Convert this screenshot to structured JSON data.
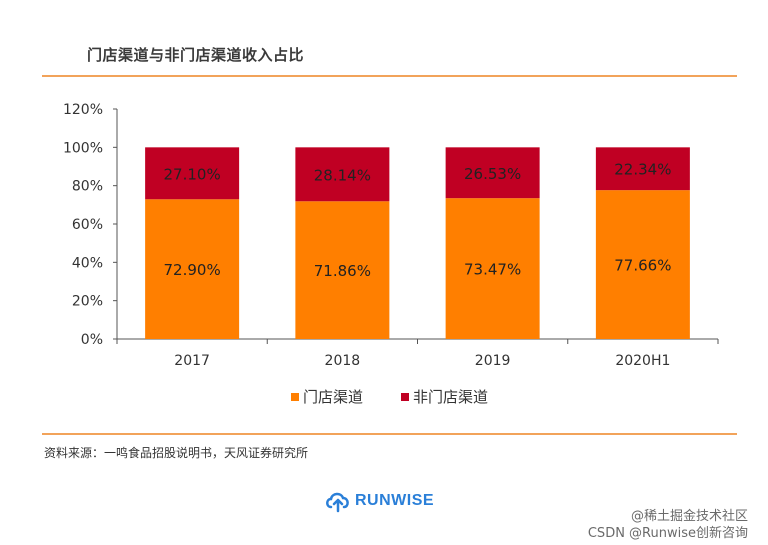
{
  "title": "门店渠道与非门店渠道收入占比",
  "source": "资料来源：一鸣食品招股说明书，天风证券研究所",
  "logo": {
    "text": "RUNWISE",
    "color": "#2a7fd8"
  },
  "watermark": {
    "line1": "@稀土掘金技术社区",
    "line2": "CSDN @Runwise创新咨询"
  },
  "colors": {
    "rule": "#f2a35a",
    "store": "#ff7f00",
    "nonstore": "#c00023"
  },
  "chart_data": {
    "type": "bar",
    "stacked": true,
    "categories": [
      "2017",
      "2018",
      "2019",
      "2020H1"
    ],
    "series": [
      {
        "name": "门店渠道",
        "values": [
          72.9,
          71.86,
          73.47,
          77.66
        ],
        "labels": [
          "72.90%",
          "71.86%",
          "73.47%",
          "77.66%"
        ],
        "color": "#ff7f00"
      },
      {
        "name": "非门店渠道",
        "values": [
          27.1,
          28.14,
          26.53,
          22.34
        ],
        "labels": [
          "27.10%",
          "28.14%",
          "26.53%",
          "22.34%"
        ],
        "color": "#c00023"
      }
    ],
    "ylim": [
      0,
      120
    ],
    "yticks": [
      0,
      20,
      40,
      60,
      80,
      100,
      120
    ],
    "ytick_labels": [
      "0%",
      "20%",
      "40%",
      "60%",
      "80%",
      "100%",
      "120%"
    ],
    "legend_position": "bottom",
    "grid": false
  }
}
